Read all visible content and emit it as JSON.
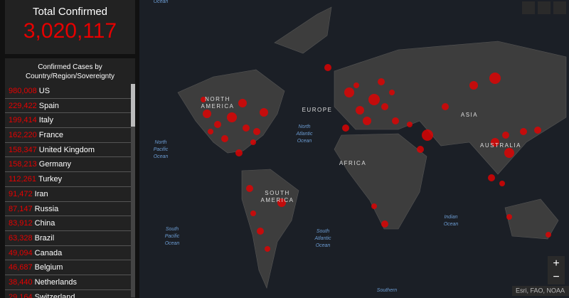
{
  "header": {
    "title": "Total Confirmed",
    "total": "3,020,117"
  },
  "list": {
    "title_lines": [
      "Confirmed Cases by",
      "Country/Region/Sovereignty"
    ],
    "rows": [
      {
        "value": "980,008",
        "name": "US"
      },
      {
        "value": "229,422",
        "name": "Spain"
      },
      {
        "value": "199,414",
        "name": "Italy"
      },
      {
        "value": "162,220",
        "name": "France"
      },
      {
        "value": "158,347",
        "name": "United Kingdom"
      },
      {
        "value": "158,213",
        "name": "Germany"
      },
      {
        "value": "112,261",
        "name": "Turkey"
      },
      {
        "value": "91,472",
        "name": "Iran"
      },
      {
        "value": "87,147",
        "name": "Russia"
      },
      {
        "value": "83,912",
        "name": "China"
      },
      {
        "value": "63,328",
        "name": "Brazil"
      },
      {
        "value": "49,094",
        "name": "Canada"
      },
      {
        "value": "46,687",
        "name": "Belgium"
      },
      {
        "value": "38,440",
        "name": "Netherlands"
      },
      {
        "value": "29,164",
        "name": "Switzerland"
      }
    ]
  },
  "map": {
    "labels": [
      {
        "lines": [
          "NORTH",
          "AMERICA"
        ],
        "kind": "continent"
      },
      {
        "lines": [
          "EUROPE"
        ],
        "kind": "continent"
      },
      {
        "lines": [
          "ASIA"
        ],
        "kind": "continent"
      },
      {
        "lines": [
          "AFRICA"
        ],
        "kind": "continent"
      },
      {
        "lines": [
          "SOUTH",
          "AMERICA"
        ],
        "kind": "continent"
      },
      {
        "lines": [
          "AUSTRALIA"
        ],
        "kind": "continent"
      },
      {
        "lines": [
          "North",
          "Pacific",
          "Ocean"
        ],
        "kind": "ocean"
      },
      {
        "lines": [
          "North",
          "Atlantic",
          "Ocean"
        ],
        "kind": "ocean"
      },
      {
        "lines": [
          "South",
          "Pacific",
          "Ocean"
        ],
        "kind": "ocean"
      },
      {
        "lines": [
          "South",
          "Atlantic",
          "Ocean"
        ],
        "kind": "ocean"
      },
      {
        "lines": [
          "Indian",
          "Ocean"
        ],
        "kind": "ocean"
      },
      {
        "lines": [
          "Southern"
        ],
        "kind": "ocean"
      },
      {
        "lines": [
          "Ocean"
        ],
        "kind": "ocean"
      }
    ],
    "attribution": "Esri, FAO, NOAA",
    "zoom_in": "+",
    "zoom_out": "−"
  }
}
